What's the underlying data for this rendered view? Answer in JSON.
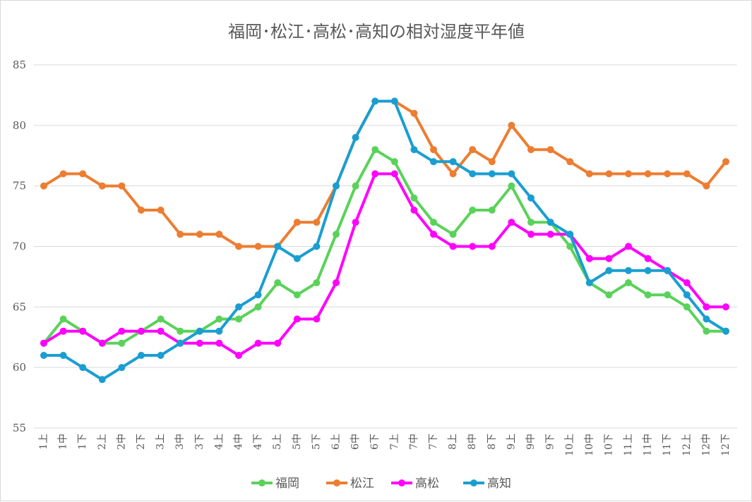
{
  "chart_data": {
    "type": "line",
    "title": "福岡･松江･高松･高知の相対湿度平年値",
    "xlabel": "",
    "ylabel": "",
    "ylim": [
      55,
      85
    ],
    "yticks": [
      55,
      60,
      65,
      70,
      75,
      80,
      85
    ],
    "grid": true,
    "legend_position": "bottom",
    "categories": [
      "1上",
      "1中",
      "1下",
      "2上",
      "2中",
      "2下",
      "3上",
      "3中",
      "3下",
      "4上",
      "4中",
      "4下",
      "5上",
      "5中",
      "5下",
      "6上",
      "6中",
      "6下",
      "7上",
      "7中",
      "7下",
      "8上",
      "8中",
      "8下",
      "9上",
      "9中",
      "9下",
      "10上",
      "10中",
      "10下",
      "11上",
      "11中",
      "11下",
      "12上",
      "12中",
      "12下"
    ],
    "series": [
      {
        "name": "福岡",
        "color": "#5ad25a",
        "values": [
          62,
          64,
          63,
          62,
          62,
          63,
          64,
          63,
          63,
          64,
          64,
          65,
          67,
          66,
          67,
          71,
          75,
          78,
          77,
          74,
          72,
          71,
          73,
          73,
          75,
          72,
          72,
          70,
          67,
          66,
          67,
          66,
          66,
          65,
          63,
          63
        ]
      },
      {
        "name": "松江",
        "color": "#ed7d31",
        "values": [
          75,
          76,
          76,
          75,
          75,
          73,
          73,
          71,
          71,
          71,
          70,
          70,
          70,
          72,
          72,
          75,
          79,
          82,
          82,
          81,
          78,
          76,
          78,
          77,
          80,
          78,
          78,
          77,
          76,
          76,
          76,
          76,
          76,
          76,
          75,
          77
        ]
      },
      {
        "name": "高松",
        "color": "#ff00ff",
        "values": [
          62,
          63,
          63,
          62,
          63,
          63,
          63,
          62,
          62,
          62,
          61,
          62,
          62,
          64,
          64,
          67,
          72,
          76,
          76,
          73,
          71,
          70,
          70,
          70,
          72,
          71,
          71,
          71,
          69,
          69,
          70,
          69,
          68,
          67,
          65,
          65
        ]
      },
      {
        "name": "高知",
        "color": "#1a9ed1",
        "values": [
          61,
          61,
          60,
          59,
          60,
          61,
          61,
          62,
          63,
          63,
          65,
          66,
          70,
          69,
          70,
          75,
          79,
          82,
          82,
          78,
          77,
          77,
          76,
          76,
          76,
          74,
          72,
          71,
          67,
          68,
          68,
          68,
          68,
          66,
          64,
          63
        ]
      }
    ]
  }
}
